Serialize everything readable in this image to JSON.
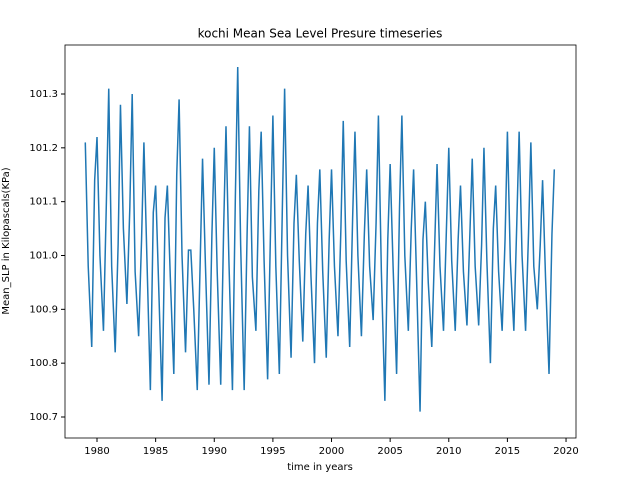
{
  "chart_data": {
    "type": "line",
    "title": "kochi Mean Sea Level Presure timeseries",
    "x_label": "time in years",
    "y_label": "Mean_SLP in Kilopascals(KPa)",
    "xlim": [
      1977.27,
      2020.85
    ],
    "ylim": [
      100.661,
      101.391
    ],
    "xticks": [
      1980,
      1985,
      1990,
      1995,
      2000,
      2005,
      2010,
      2015,
      2020
    ],
    "yticks": [
      100.7,
      100.8,
      100.9,
      {
        "value": 101,
        "label": "101.0"
      },
      101.1,
      101.2,
      101.3
    ],
    "series": [
      {
        "color": "#1f77b4",
        "x": [
          1979,
          1979.25,
          1979.55,
          1979.8,
          1980,
          1980.25,
          1980.55,
          1980.8,
          1981,
          1981.25,
          1981.55,
          1981.8,
          1982,
          1982.25,
          1982.55,
          1982.8,
          1983,
          1983.25,
          1983.55,
          1983.8,
          1984,
          1984.25,
          1984.55,
          1984.8,
          1985,
          1985.25,
          1985.55,
          1985.8,
          1986,
          1986.25,
          1986.55,
          1986.8,
          1987,
          1987.25,
          1987.55,
          1987.8,
          1988,
          1988.25,
          1988.55,
          1988.8,
          1989,
          1989.25,
          1989.55,
          1989.8,
          1990,
          1990.25,
          1990.55,
          1990.8,
          1991,
          1991.25,
          1991.55,
          1991.8,
          1992,
          1992.25,
          1992.55,
          1992.8,
          1993,
          1993.25,
          1993.55,
          1993.8,
          1994,
          1994.25,
          1994.55,
          1994.8,
          1995,
          1995.25,
          1995.55,
          1995.8,
          1996,
          1996.25,
          1996.55,
          1996.8,
          1997,
          1997.25,
          1997.55,
          1997.8,
          1998,
          1998.25,
          1998.55,
          1998.8,
          1999,
          1999.25,
          1999.55,
          1999.8,
          2000,
          2000.25,
          2000.55,
          2000.8,
          2001,
          2001.25,
          2001.55,
          2001.8,
          2002,
          2002.25,
          2002.55,
          2002.8,
          2003,
          2003.25,
          2003.55,
          2003.8,
          2004,
          2004.25,
          2004.55,
          2004.8,
          2005,
          2005.25,
          2005.55,
          2005.8,
          2006,
          2006.25,
          2006.55,
          2006.8,
          2007,
          2007.25,
          2007.55,
          2007.8,
          2008,
          2008.25,
          2008.55,
          2008.8,
          2009,
          2009.25,
          2009.55,
          2009.8,
          2010,
          2010.25,
          2010.55,
          2010.8,
          2011,
          2011.25,
          2011.55,
          2011.8,
          2012,
          2012.25,
          2012.55,
          2012.8,
          2013,
          2013.25,
          2013.55,
          2013.8,
          2014,
          2014.25,
          2014.55,
          2014.8,
          2015,
          2015.25,
          2015.55,
          2015.8,
          2016,
          2016.25,
          2016.55,
          2016.8,
          2017,
          2017.25,
          2017.55,
          2017.8,
          2018,
          2018.25,
          2018.55,
          2018.8,
          2019
        ],
        "values": [
          101.21,
          100.98,
          100.83,
          101.14,
          101.22,
          101.0,
          100.86,
          101.1,
          101.31,
          100.98,
          100.82,
          101.02,
          101.28,
          101.05,
          100.91,
          101.09,
          101.3,
          100.97,
          100.85,
          101.03,
          101.21,
          101.0,
          100.75,
          101.08,
          101.13,
          100.95,
          100.73,
          101.07,
          101.13,
          100.96,
          100.78,
          101.15,
          101.29,
          101.0,
          100.82,
          101.01,
          101.01,
          100.9,
          100.75,
          100.99,
          101.18,
          100.98,
          100.76,
          101.04,
          101.2,
          100.97,
          100.76,
          101.05,
          101.24,
          100.99,
          100.75,
          101.11,
          101.35,
          101.02,
          100.75,
          101.04,
          101.24,
          100.96,
          100.86,
          101.12,
          101.23,
          100.99,
          100.77,
          101.05,
          101.26,
          100.98,
          100.78,
          101.08,
          101.31,
          101.0,
          100.81,
          101.06,
          101.15,
          100.99,
          100.84,
          101.04,
          101.13,
          100.96,
          100.8,
          101.06,
          101.16,
          100.97,
          100.81,
          101.03,
          101.16,
          100.98,
          100.85,
          101.05,
          101.25,
          100.99,
          100.83,
          101.07,
          101.23,
          101.0,
          100.85,
          101.04,
          101.16,
          100.98,
          100.88,
          101.06,
          101.26,
          100.97,
          100.73,
          101.03,
          101.17,
          100.98,
          100.78,
          101.09,
          101.26,
          101.0,
          100.86,
          101.05,
          101.16,
          100.96,
          100.71,
          101.03,
          101.1,
          100.95,
          100.83,
          101.02,
          101.17,
          100.98,
          100.86,
          101.05,
          101.2,
          100.99,
          100.86,
          101.03,
          101.13,
          100.97,
          100.87,
          101.04,
          101.18,
          100.98,
          100.87,
          101.02,
          101.2,
          100.99,
          100.8,
          101.05,
          101.13,
          100.97,
          100.86,
          101.03,
          101.23,
          100.99,
          100.86,
          101.06,
          101.23,
          101.0,
          100.86,
          101.04,
          101.21,
          100.98,
          100.9,
          101.02,
          101.14,
          100.96,
          100.78,
          101.04,
          101.16
        ]
      }
    ]
  }
}
